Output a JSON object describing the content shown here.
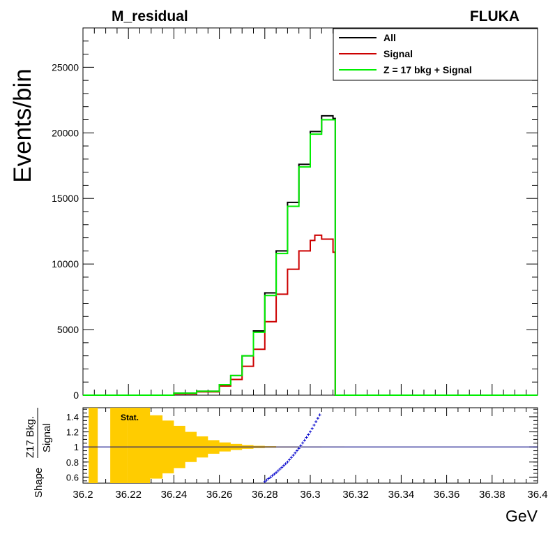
{
  "chart_data": [
    {
      "type": "line",
      "title": "M_residual",
      "title_right": "FLUKA",
      "ylabel": "Events/bin",
      "xlabel": "GeV",
      "xlim": [
        36.2,
        36.4
      ],
      "ylim": [
        0,
        28000
      ],
      "yticks": [
        0,
        5000,
        10000,
        15000,
        20000,
        25000
      ],
      "legend_placement": "top-right",
      "grid": false,
      "series": [
        {
          "name": "All",
          "color": "#000000",
          "x": [
            36.2,
            36.22,
            36.23,
            36.24,
            36.25,
            36.26,
            36.265,
            36.27,
            36.275,
            36.28,
            36.285,
            36.29,
            36.295,
            36.3,
            36.305,
            36.31,
            36.311,
            36.4
          ],
          "y": [
            0,
            0,
            0,
            150,
            300,
            800,
            1500,
            3000,
            4900,
            7800,
            11000,
            14700,
            17600,
            20100,
            21300,
            21100,
            0,
            0
          ]
        },
        {
          "name": "Signal",
          "color": "#cc0000",
          "x": [
            36.2,
            36.22,
            36.23,
            36.24,
            36.25,
            36.26,
            36.265,
            36.27,
            36.275,
            36.28,
            36.285,
            36.29,
            36.295,
            36.3,
            36.302,
            36.305,
            36.31,
            36.311,
            36.4
          ],
          "y": [
            0,
            0,
            0,
            100,
            250,
            700,
            1200,
            2200,
            3500,
            5600,
            7700,
            9600,
            11000,
            11800,
            12200,
            11900,
            10900,
            0,
            0
          ]
        },
        {
          "name": "Z = 17 bkg + Signal",
          "color": "#00ee00",
          "x": [
            36.2,
            36.22,
            36.23,
            36.24,
            36.25,
            36.26,
            36.265,
            36.27,
            36.275,
            36.28,
            36.285,
            36.29,
            36.295,
            36.3,
            36.305,
            36.31,
            36.311,
            36.4
          ],
          "y": [
            0,
            0,
            0,
            150,
            300,
            800,
            1500,
            3000,
            4800,
            7600,
            10800,
            14400,
            17400,
            19900,
            21000,
            21000,
            0,
            0
          ]
        }
      ]
    },
    {
      "type": "scatter",
      "ylabel": "Shape Z17 Bkg. / Signal",
      "ylim": [
        0.52,
        1.52
      ],
      "yticks": [
        0.6,
        0.8,
        1,
        1.2,
        1.4
      ],
      "xlim": [
        36.2,
        36.4
      ],
      "xticks": [
        36.2,
        36.22,
        36.24,
        36.26,
        36.28,
        36.3,
        36.32,
        36.34,
        36.36,
        36.38,
        36.4
      ],
      "reference_line": 1,
      "band_legend": "Stat.",
      "series": [
        {
          "name": "Stat.",
          "color": "#ffcc00",
          "x": [
            36.23,
            36.235,
            36.24,
            36.245,
            36.25,
            36.255,
            36.26,
            36.265,
            36.27,
            36.275,
            36.28,
            36.29,
            36.3,
            36.31
          ],
          "half_width": [
            0.42,
            0.35,
            0.28,
            0.2,
            0.14,
            0.09,
            0.06,
            0.04,
            0.025,
            0.015,
            0.01,
            0.006,
            0.004,
            0.003
          ]
        },
        {
          "color": "#0000cc",
          "x": [
            36.28,
            36.285,
            36.29,
            36.295,
            36.3,
            36.305
          ],
          "y": [
            0.54,
            0.66,
            0.8,
            0.98,
            1.2,
            1.47
          ]
        }
      ]
    }
  ]
}
